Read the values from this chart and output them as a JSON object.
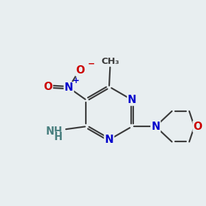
{
  "bg_color": "#e8eef0",
  "N_color": "#0000cc",
  "O_color": "#cc0000",
  "C_color": "#3a3a3a",
  "H_color": "#4a8080",
  "bond_color": "#3a3a3a",
  "bond_lw": 1.6,
  "dbo": 0.055,
  "figsize": [
    3.0,
    3.0
  ],
  "dpi": 100,
  "xlim": [
    0,
    10
  ],
  "ylim": [
    0,
    10
  ]
}
